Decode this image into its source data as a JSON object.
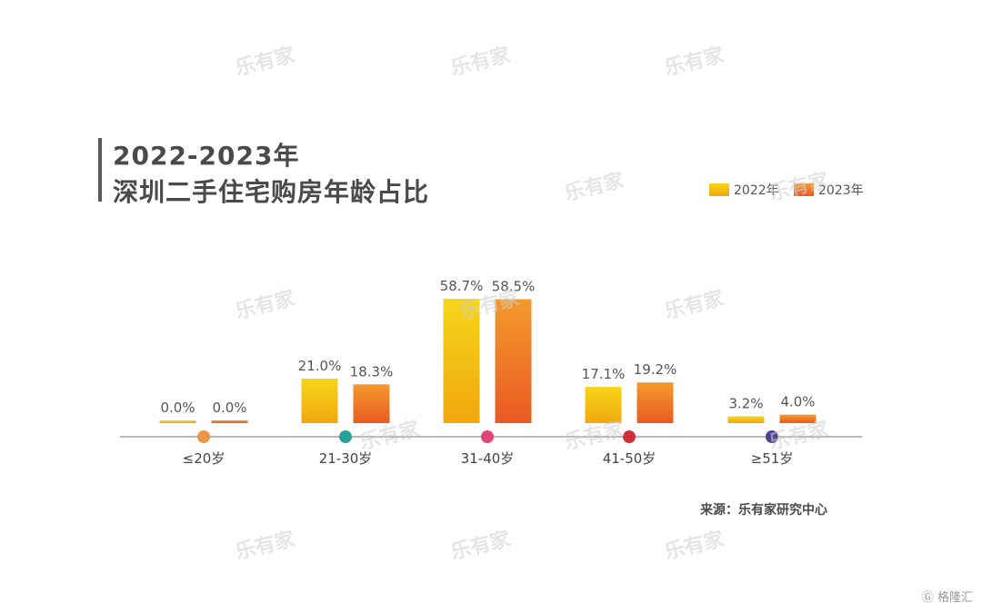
{
  "title": {
    "line1": "2022-2023年",
    "line2": "深圳二手住宅购房年龄占比"
  },
  "source": "来源：乐有家研究中心",
  "watermark_text": "乐有家",
  "corner_logo": "格隆汇",
  "colors": {
    "series_2022_top": "#f6d51a",
    "series_2022_bottom": "#f0a70e",
    "series_2023_top": "#f39a2c",
    "series_2023_bottom": "#ea5a23",
    "axis": "#a0a0a0",
    "dots": [
      "#e8974a",
      "#25a29a",
      "#e0457b",
      "#d22d3a",
      "#4a4392"
    ]
  },
  "chart_data": {
    "type": "bar",
    "title": "2022-2023年 深圳二手住宅购房年龄占比",
    "categories": [
      "≤20岁",
      "21-30岁",
      "31-40岁",
      "41-50岁",
      "≥51岁"
    ],
    "series": [
      {
        "name": "2022年",
        "values": [
          0.0,
          21.0,
          58.7,
          17.1,
          3.2
        ],
        "labels": [
          "0.0%",
          "21.0%",
          "58.7%",
          "17.1%",
          "3.2%"
        ]
      },
      {
        "name": "2023年",
        "values": [
          0.0,
          18.3,
          58.5,
          19.2,
          4.0
        ],
        "labels": [
          "0.0%",
          "18.3%",
          "58.5%",
          "19.2%",
          "4.0%"
        ]
      }
    ],
    "xlabel": "",
    "ylabel": "",
    "ylim": [
      0,
      60
    ],
    "legend": "top-right",
    "grid": false
  }
}
